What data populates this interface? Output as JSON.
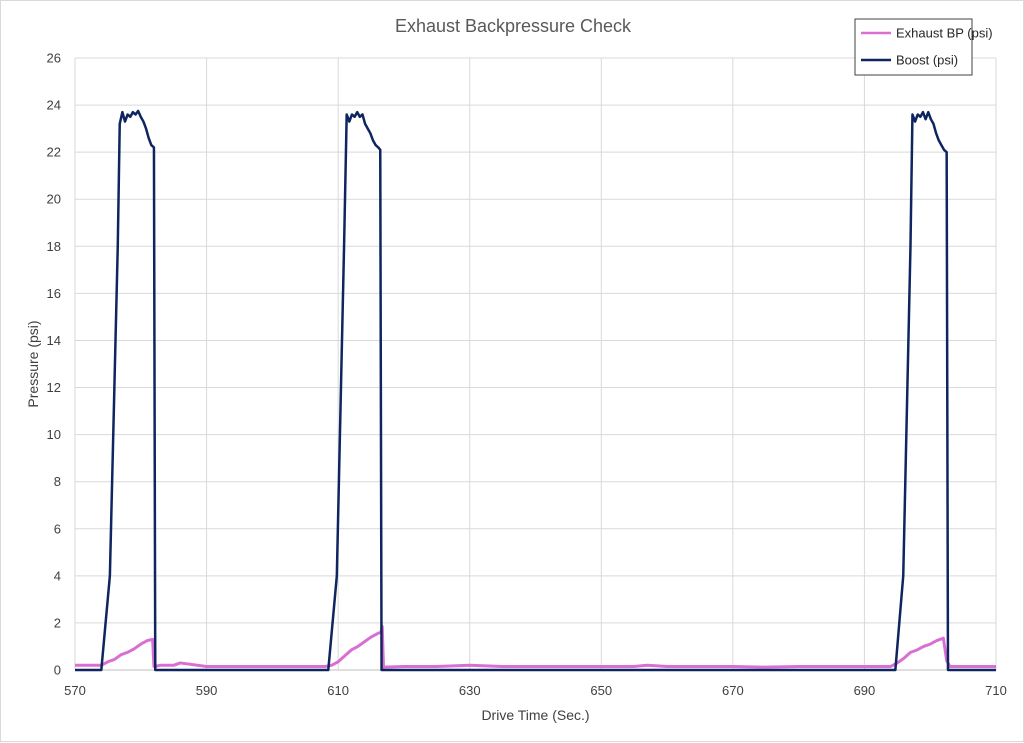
{
  "chart_data": {
    "type": "line",
    "title": "Exhaust Backpressure Check",
    "xlabel": "Drive Time (Sec.)",
    "ylabel": "Pressure (psi)",
    "xlim": [
      570,
      710
    ],
    "ylim": [
      0,
      26
    ],
    "x_ticks": [
      570,
      590,
      610,
      630,
      650,
      670,
      690,
      710
    ],
    "y_ticks": [
      0,
      2,
      4,
      6,
      8,
      10,
      12,
      14,
      16,
      18,
      20,
      22,
      24,
      26
    ],
    "grid": true,
    "legend_position": "top-right",
    "series": [
      {
        "name": "Exhaust BP (psi)",
        "color": "#d96fd3",
        "x": [
          570,
          572,
          574,
          575,
          576,
          577,
          578,
          579,
          580,
          581,
          581.8,
          582,
          583,
          585,
          586,
          590,
          595,
          600,
          605,
          608,
          609,
          610,
          611,
          612,
          613,
          614,
          615,
          616,
          616.5,
          616.7,
          616.9,
          617,
          620,
          625,
          630,
          635,
          640,
          645,
          650,
          655,
          657,
          660,
          665,
          670,
          675,
          680,
          685,
          690,
          694,
          695,
          696,
          697,
          698,
          699,
          700,
          701,
          702,
          702.5,
          703,
          705,
          708,
          710
        ],
        "y": [
          0.2,
          0.2,
          0.2,
          0.35,
          0.45,
          0.65,
          0.75,
          0.9,
          1.1,
          1.25,
          1.3,
          0.15,
          0.2,
          0.2,
          0.3,
          0.15,
          0.15,
          0.15,
          0.15,
          0.15,
          0.2,
          0.35,
          0.6,
          0.85,
          1.0,
          1.2,
          1.4,
          1.55,
          1.6,
          1.85,
          0.1,
          0.12,
          0.15,
          0.15,
          0.2,
          0.15,
          0.15,
          0.15,
          0.15,
          0.15,
          0.2,
          0.15,
          0.15,
          0.15,
          0.12,
          0.15,
          0.15,
          0.15,
          0.15,
          0.3,
          0.5,
          0.75,
          0.85,
          1.0,
          1.1,
          1.25,
          1.35,
          0.4,
          0.15,
          0.15,
          0.15,
          0.15
        ]
      },
      {
        "name": "Boost (psi)",
        "color": "#0e2560",
        "x": [
          570,
          574,
          575.3,
          576.5,
          576.8,
          577.2,
          577.6,
          578,
          578.4,
          578.8,
          579.2,
          579.6,
          580,
          580.4,
          580.8,
          581.2,
          581.6,
          582,
          582.2,
          590,
          600,
          608.5,
          609.8,
          610.9,
          611.3,
          611.7,
          612.1,
          612.5,
          612.9,
          613.3,
          613.7,
          614.1,
          614.5,
          614.9,
          615.3,
          615.7,
          616.1,
          616.4,
          616.6,
          630,
          650,
          670,
          690,
          694.7,
          695.9,
          697,
          697.3,
          697.7,
          698.1,
          698.5,
          698.9,
          699.3,
          699.7,
          700.1,
          700.5,
          700.9,
          701.3,
          701.7,
          702.1,
          702.5,
          702.7,
          710
        ],
        "y": [
          0,
          0,
          4,
          18,
          23.2,
          23.7,
          23.3,
          23.6,
          23.5,
          23.7,
          23.6,
          23.75,
          23.5,
          23.3,
          23.0,
          22.6,
          22.3,
          22.2,
          0,
          0,
          0,
          0,
          4,
          18,
          23.6,
          23.3,
          23.6,
          23.5,
          23.7,
          23.5,
          23.6,
          23.2,
          23.0,
          22.8,
          22.5,
          22.3,
          22.2,
          22.1,
          0,
          0,
          0,
          0,
          0,
          0,
          4,
          18,
          23.6,
          23.3,
          23.6,
          23.5,
          23.7,
          23.4,
          23.7,
          23.4,
          23.2,
          22.8,
          22.5,
          22.3,
          22.1,
          22.0,
          0,
          0
        ]
      }
    ]
  }
}
